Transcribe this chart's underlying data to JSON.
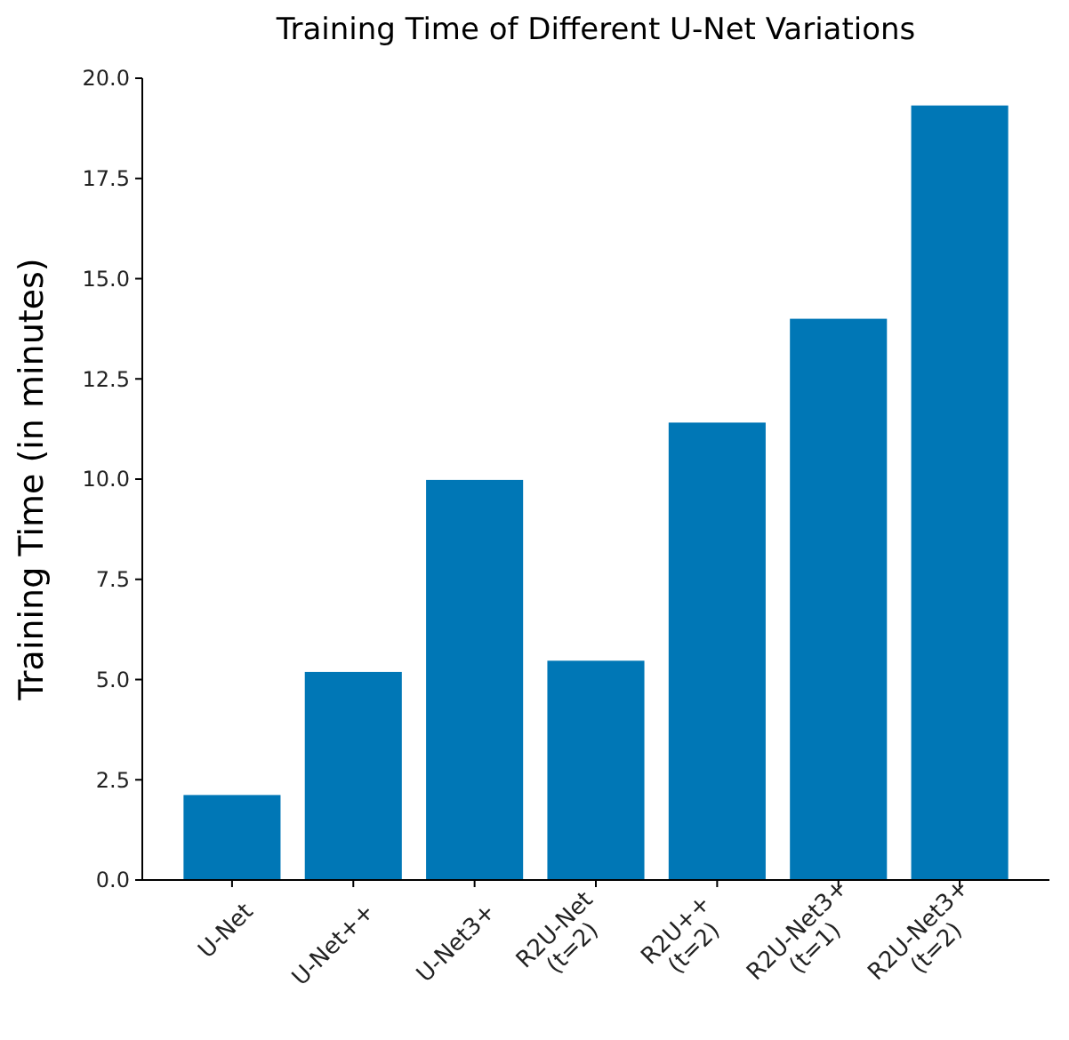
{
  "chart_data": {
    "type": "bar",
    "title": "Training Time of Different U-Net Variations",
    "ylabel": "Training Time (in minutes)",
    "categories": [
      "U-Net",
      "U-Net++",
      "U-Net3+",
      "R2U-Net\n(t=2)",
      "R2U++\n(t=2)",
      "R2U-Net3+\n(t=1)",
      "R2U-Net3+\n(t=2)"
    ],
    "values": [
      2.12,
      5.19,
      9.98,
      5.47,
      11.41,
      14.0,
      19.32
    ],
    "color": "#0077b6",
    "ylim": [
      0,
      20
    ],
    "yticks": [
      {
        "value": 0,
        "label": "0.0"
      },
      {
        "value": 2.5,
        "label": "2.5"
      },
      {
        "value": 5,
        "label": "5.0"
      },
      {
        "value": 7.5,
        "label": "7.5"
      },
      {
        "value": 10,
        "label": "10.0"
      },
      {
        "value": 12.5,
        "label": "12.5"
      },
      {
        "value": 15,
        "label": "15.0"
      },
      {
        "value": 17.5,
        "label": "17.5"
      },
      {
        "value": 20,
        "label": "20.0"
      }
    ],
    "grid": false
  }
}
